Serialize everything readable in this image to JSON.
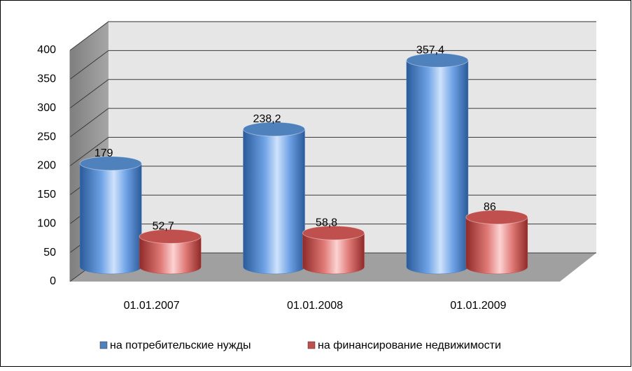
{
  "chart_data": {
    "type": "bar3d",
    "categories": [
      "01.01.2007",
      "01.01.2008",
      "01.01.2009"
    ],
    "series": [
      {
        "name": "на потребительские нужды",
        "color": "#4f81bd",
        "values": [
          179,
          238.2,
          357.4
        ],
        "value_labels": [
          "179",
          "238,2",
          "357,4"
        ]
      },
      {
        "name": "на финансирование недвижимости",
        "color": "#c0504d",
        "values": [
          52.7,
          58.8,
          86
        ],
        "value_labels": [
          "52,7",
          "58,8",
          "86"
        ]
      }
    ],
    "ylim": [
      0,
      400
    ],
    "yticks": [
      0,
      50,
      100,
      150,
      200,
      250,
      300,
      350,
      400
    ],
    "grid": true,
    "legend": "bottom"
  }
}
